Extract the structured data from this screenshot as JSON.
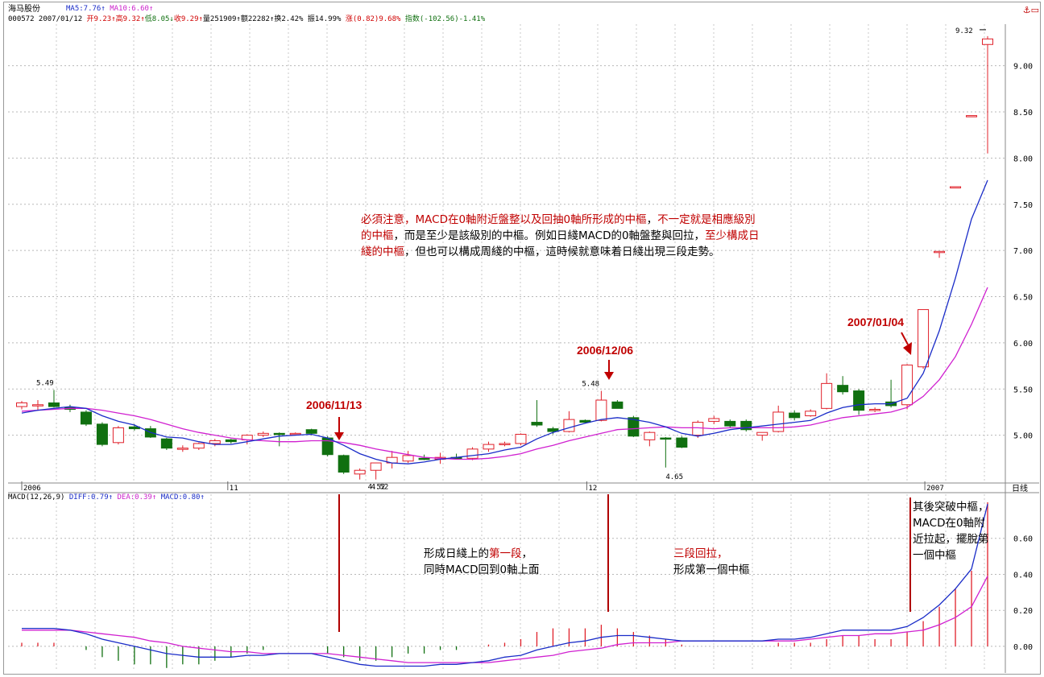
{
  "header": {
    "stock_name": "海马股份",
    "ma5_label": "MA5:7.76↑",
    "ma10_label": "MA10:6.60↑",
    "code_date": "000572 2007/01/12",
    "open": "开9.23↑",
    "high": "高9.32↑",
    "low": "低8.05↓",
    "close": "收9.29↑",
    "volume": "量251909↑",
    "amount": "额22282↑",
    "turnover": "换2.42%",
    "amplitude": "振14.99%",
    "change": "涨(0.82)9.68%",
    "index": "指数(-102.56)-1.41%"
  },
  "macd_header": {
    "params": "MACD(12,26,9)",
    "diff": "DIFF:0.79↑",
    "dea": "DEA:0.39↑",
    "macd": "MACD:0.80↑"
  },
  "period_label": "日线",
  "annotations": {
    "main_note": {
      "segments": [
        {
          "t": "必須注意，",
          "red": true
        },
        {
          "t": "MACD在0軸附近盤整以及回抽0軸所形成的中樞",
          "red": true
        },
        {
          "t": "，",
          "red": false
        },
        {
          "t": "不一定就是相應級別的中樞",
          "red": true
        },
        {
          "t": "，而是至少是該級別的中樞。例如日綫MACD的0軸盤整與回拉，",
          "red": false
        },
        {
          "t": "至少構成日綫的中樞",
          "red": true
        },
        {
          "t": "，但也可以構成周綫的中樞",
          "red": false
        },
        {
          "t": "，這時候就意味着日綫出現三段走勢。",
          "red": false
        }
      ]
    },
    "note_first_segment": {
      "line1_a": "形成日綫上的",
      "line1_b": "第一段",
      "line1_c": "，",
      "line2": "同時MACD回到0軸上面"
    },
    "note_three_pullback": {
      "line1": "三段回拉，",
      "line2": "形成第一個中樞"
    },
    "note_breakout": {
      "line1": "其後突破中樞，",
      "line2": "MACD在0軸附",
      "line3": "近拉起，擺脫第",
      "line4": "一個中樞"
    },
    "date_1113": "2006/11/13",
    "date_1206": "2006/12/06",
    "date_0104": "2007/01/04"
  },
  "chart_data": [
    {
      "type": "candlestick",
      "title": "",
      "ylim": [
        4.5,
        9.45
      ],
      "y_ticks": [
        "5.00",
        "5.50",
        "6.00",
        "6.50",
        "7.00",
        "7.50",
        "8.00",
        "8.50",
        "9.00"
      ],
      "x_tick_labels": [
        "2006",
        "11",
        "12",
        "2007"
      ],
      "price_labels": [
        "5.49",
        "4.52",
        "4.52",
        "5.48",
        "4.65",
        "9.32"
      ],
      "colors": {
        "up": "#e0202a",
        "down": "#107010",
        "ma5": "#1a2cc8",
        "ma10": "#d020d0"
      },
      "candles": [
        {
          "o": 5.31,
          "h": 5.37,
          "l": 5.28,
          "c": 5.35
        },
        {
          "o": 5.32,
          "h": 5.38,
          "l": 5.27,
          "c": 5.33
        },
        {
          "o": 5.35,
          "h": 5.49,
          "l": 5.3,
          "c": 5.31
        },
        {
          "o": 5.3,
          "h": 5.33,
          "l": 5.25,
          "c": 5.28
        },
        {
          "o": 5.25,
          "h": 5.27,
          "l": 5.1,
          "c": 5.12
        },
        {
          "o": 5.12,
          "h": 5.14,
          "l": 4.88,
          "c": 4.9
        },
        {
          "o": 4.92,
          "h": 5.1,
          "l": 4.9,
          "c": 5.08
        },
        {
          "o": 5.09,
          "h": 5.12,
          "l": 5.05,
          "c": 5.07
        },
        {
          "o": 5.07,
          "h": 5.1,
          "l": 4.97,
          "c": 4.98
        },
        {
          "o": 4.96,
          "h": 4.97,
          "l": 4.84,
          "c": 4.86
        },
        {
          "o": 4.85,
          "h": 4.89,
          "l": 4.82,
          "c": 4.86
        },
        {
          "o": 4.86,
          "h": 4.92,
          "l": 4.84,
          "c": 4.91
        },
        {
          "o": 4.91,
          "h": 4.96,
          "l": 4.88,
          "c": 4.94
        },
        {
          "o": 4.95,
          "h": 4.96,
          "l": 4.91,
          "c": 4.93
        },
        {
          "o": 4.95,
          "h": 5.01,
          "l": 4.9,
          "c": 5.0
        },
        {
          "o": 5.0,
          "h": 5.04,
          "l": 4.98,
          "c": 5.02
        },
        {
          "o": 5.02,
          "h": 5.03,
          "l": 4.88,
          "c": 5.01
        },
        {
          "o": 5.01,
          "h": 5.03,
          "l": 5.0,
          "c": 5.02
        },
        {
          "o": 5.06,
          "h": 5.07,
          "l": 5.0,
          "c": 5.02
        },
        {
          "o": 4.97,
          "h": 4.99,
          "l": 4.77,
          "c": 4.79
        },
        {
          "o": 4.78,
          "h": 4.79,
          "l": 4.58,
          "c": 4.6
        },
        {
          "o": 4.58,
          "h": 4.64,
          "l": 4.52,
          "c": 4.62
        },
        {
          "o": 4.62,
          "h": 4.7,
          "l": 4.52,
          "c": 4.7
        },
        {
          "o": 4.7,
          "h": 4.83,
          "l": 4.64,
          "c": 4.76
        },
        {
          "o": 4.72,
          "h": 4.83,
          "l": 4.7,
          "c": 4.78
        },
        {
          "o": 4.75,
          "h": 4.79,
          "l": 4.73,
          "c": 4.74
        },
        {
          "o": 4.74,
          "h": 4.81,
          "l": 4.69,
          "c": 4.76
        },
        {
          "o": 4.76,
          "h": 4.8,
          "l": 4.74,
          "c": 4.75
        },
        {
          "o": 4.75,
          "h": 4.87,
          "l": 4.73,
          "c": 4.85
        },
        {
          "o": 4.85,
          "h": 4.93,
          "l": 4.82,
          "c": 4.9
        },
        {
          "o": 4.9,
          "h": 4.93,
          "l": 4.88,
          "c": 4.91
        },
        {
          "o": 4.91,
          "h": 5.02,
          "l": 4.89,
          "c": 5.01
        },
        {
          "o": 5.14,
          "h": 5.38,
          "l": 5.09,
          "c": 5.11
        },
        {
          "o": 5.07,
          "h": 5.09,
          "l": 5.01,
          "c": 5.04
        },
        {
          "o": 5.04,
          "h": 5.26,
          "l": 5.03,
          "c": 5.17
        },
        {
          "o": 5.16,
          "h": 5.17,
          "l": 5.13,
          "c": 5.14
        },
        {
          "o": 5.16,
          "h": 5.48,
          "l": 5.15,
          "c": 5.38
        },
        {
          "o": 5.36,
          "h": 5.38,
          "l": 5.29,
          "c": 5.29
        },
        {
          "o": 5.19,
          "h": 5.21,
          "l": 4.98,
          "c": 4.99
        },
        {
          "o": 4.95,
          "h": 5.04,
          "l": 4.88,
          "c": 5.03
        },
        {
          "o": 4.97,
          "h": 4.98,
          "l": 4.65,
          "c": 4.96
        },
        {
          "o": 4.97,
          "h": 4.99,
          "l": 4.86,
          "c": 4.87
        },
        {
          "o": 5.0,
          "h": 5.16,
          "l": 4.97,
          "c": 5.14
        },
        {
          "o": 5.15,
          "h": 5.21,
          "l": 5.12,
          "c": 5.18
        },
        {
          "o": 5.15,
          "h": 5.17,
          "l": 5.08,
          "c": 5.1
        },
        {
          "o": 5.15,
          "h": 5.17,
          "l": 5.04,
          "c": 5.06
        },
        {
          "o": 5.0,
          "h": 5.03,
          "l": 4.94,
          "c": 5.03
        },
        {
          "o": 5.04,
          "h": 5.32,
          "l": 5.03,
          "c": 5.25
        },
        {
          "o": 5.24,
          "h": 5.27,
          "l": 5.16,
          "c": 5.19
        },
        {
          "o": 5.21,
          "h": 5.28,
          "l": 5.2,
          "c": 5.26
        },
        {
          "o": 5.29,
          "h": 5.67,
          "l": 5.28,
          "c": 5.56
        },
        {
          "o": 5.54,
          "h": 5.64,
          "l": 5.44,
          "c": 5.47
        },
        {
          "o": 5.48,
          "h": 5.5,
          "l": 5.22,
          "c": 5.27
        },
        {
          "o": 5.27,
          "h": 5.3,
          "l": 5.25,
          "c": 5.28
        },
        {
          "o": 5.36,
          "h": 5.6,
          "l": 5.3,
          "c": 5.32
        },
        {
          "o": 5.33,
          "h": 5.77,
          "l": 5.28,
          "c": 5.76
        },
        {
          "o": 5.74,
          "h": 6.36,
          "l": 5.72,
          "c": 6.36
        },
        {
          "o": 6.98,
          "h": 6.99,
          "l": 6.92,
          "c": 6.99
        },
        {
          "o": 7.69,
          "h": 7.69,
          "l": 7.68,
          "c": 7.69
        },
        {
          "o": 8.46,
          "h": 8.46,
          "l": 8.45,
          "c": 8.46
        },
        {
          "o": 9.23,
          "h": 9.32,
          "l": 8.05,
          "c": 9.29
        }
      ],
      "ma5": [
        5.24,
        5.27,
        5.29,
        5.31,
        5.29,
        5.21,
        5.15,
        5.11,
        5.03,
        4.98,
        4.97,
        4.93,
        4.9,
        4.9,
        4.93,
        4.96,
        4.99,
        5.0,
        5.01,
        4.97,
        4.89,
        4.8,
        4.74,
        4.7,
        4.69,
        4.71,
        4.74,
        4.76,
        4.78,
        4.8,
        4.84,
        4.87,
        4.96,
        5.03,
        5.08,
        5.13,
        5.17,
        5.19,
        5.17,
        5.14,
        5.09,
        5.02,
        4.99,
        5.02,
        5.06,
        5.08,
        5.1,
        5.12,
        5.14,
        5.16,
        5.24,
        5.3,
        5.33,
        5.34,
        5.34,
        5.4,
        5.67,
        6.13,
        6.7,
        7.34,
        7.76
      ],
      "ma10": [
        5.26,
        5.27,
        5.28,
        5.29,
        5.29,
        5.27,
        5.24,
        5.21,
        5.17,
        5.12,
        5.07,
        5.03,
        5.0,
        4.97,
        4.95,
        4.94,
        4.93,
        4.93,
        4.94,
        4.94,
        4.92,
        4.89,
        4.85,
        4.82,
        4.79,
        4.76,
        4.75,
        4.74,
        4.74,
        4.75,
        4.77,
        4.8,
        4.85,
        4.89,
        4.94,
        4.98,
        5.02,
        5.06,
        5.07,
        5.08,
        5.09,
        5.08,
        5.08,
        5.07,
        5.08,
        5.08,
        5.08,
        5.08,
        5.09,
        5.11,
        5.15,
        5.19,
        5.21,
        5.23,
        5.25,
        5.3,
        5.42,
        5.6,
        5.85,
        6.2,
        6.6
      ]
    },
    {
      "type": "macd",
      "title": "",
      "ylim": [
        -0.13,
        0.8
      ],
      "y_ticks": [
        "0.00",
        "0.20",
        "0.40",
        "0.60"
      ],
      "colors": {
        "diff": "#1a2cc8",
        "dea": "#d020d0",
        "hist_pos": "#e0202a",
        "hist_neg": "#107010"
      },
      "diff": [
        0.1,
        0.1,
        0.1,
        0.09,
        0.07,
        0.04,
        0.02,
        0.0,
        -0.02,
        -0.04,
        -0.05,
        -0.06,
        -0.06,
        -0.06,
        -0.05,
        -0.05,
        -0.04,
        -0.04,
        -0.04,
        -0.06,
        -0.08,
        -0.1,
        -0.11,
        -0.11,
        -0.11,
        -0.11,
        -0.1,
        -0.1,
        -0.09,
        -0.08,
        -0.06,
        -0.05,
        -0.02,
        0.0,
        0.02,
        0.03,
        0.05,
        0.06,
        0.06,
        0.05,
        0.04,
        0.03,
        0.03,
        0.03,
        0.03,
        0.03,
        0.03,
        0.04,
        0.04,
        0.05,
        0.07,
        0.09,
        0.09,
        0.09,
        0.09,
        0.11,
        0.16,
        0.23,
        0.32,
        0.43,
        0.79
      ],
      "dea": [
        0.09,
        0.09,
        0.09,
        0.09,
        0.08,
        0.07,
        0.06,
        0.05,
        0.03,
        0.02,
        0.0,
        -0.01,
        -0.02,
        -0.03,
        -0.03,
        -0.04,
        -0.04,
        -0.04,
        -0.04,
        -0.04,
        -0.05,
        -0.06,
        -0.07,
        -0.08,
        -0.09,
        -0.09,
        -0.09,
        -0.09,
        -0.09,
        -0.09,
        -0.08,
        -0.07,
        -0.06,
        -0.05,
        -0.03,
        -0.02,
        -0.01,
        0.01,
        0.02,
        0.02,
        0.02,
        0.03,
        0.03,
        0.03,
        0.03,
        0.03,
        0.03,
        0.03,
        0.03,
        0.04,
        0.05,
        0.06,
        0.06,
        0.07,
        0.07,
        0.08,
        0.09,
        0.12,
        0.16,
        0.22,
        0.39
      ],
      "macd": [
        0.02,
        0.02,
        0.02,
        0.0,
        -0.02,
        -0.06,
        -0.08,
        -0.1,
        -0.1,
        -0.12,
        -0.1,
        -0.1,
        -0.08,
        -0.06,
        -0.04,
        -0.02,
        0.0,
        0.0,
        0.0,
        -0.04,
        -0.06,
        -0.08,
        -0.08,
        -0.06,
        -0.04,
        -0.04,
        -0.02,
        -0.02,
        0.0,
        0.01,
        0.02,
        0.04,
        0.08,
        0.1,
        0.1,
        0.1,
        0.12,
        0.1,
        0.08,
        0.06,
        0.04,
        0.01,
        0.0,
        0.0,
        0.0,
        0.0,
        0.0,
        0.02,
        0.02,
        0.02,
        0.04,
        0.06,
        0.06,
        0.04,
        0.04,
        0.08,
        0.14,
        0.22,
        0.32,
        0.42,
        0.8
      ]
    }
  ]
}
